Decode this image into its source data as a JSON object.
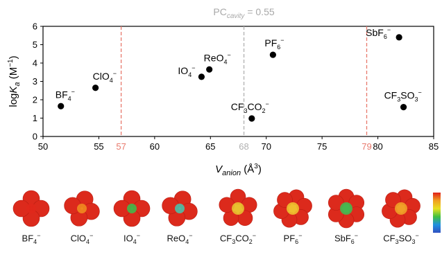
{
  "chart_data": {
    "type": "scatter",
    "title_main": "PC",
    "title_sub": "cavity",
    "title_value": " = 0.55",
    "xlabel_main": "V",
    "xlabel_sub": "anion",
    "xlabel_unit": " (Å",
    "xlabel_unit_sup": "3",
    "xlabel_close": ")",
    "ylabel_main": "log",
    "ylabel_k": "K",
    "ylabel_sub": "a",
    "ylabel_unit": " (M",
    "ylabel_unit_sup": "−1",
    "ylabel_close": ")",
    "xlim": [
      50,
      85
    ],
    "ylim": [
      0,
      6
    ],
    "xticks": [
      50,
      55,
      60,
      65,
      70,
      75,
      80,
      85
    ],
    "yticks": [
      0,
      1,
      2,
      3,
      4,
      5,
      6
    ],
    "ref_lines": [
      {
        "x": 57,
        "label": "57",
        "color": "#e8796c"
      },
      {
        "x": 68,
        "label": "68",
        "color": "#b0b0b0"
      },
      {
        "x": 79,
        "label": "79",
        "color": "#e8796c"
      }
    ],
    "points": [
      {
        "label": "BF",
        "sub": "4",
        "sup": "−",
        "x": 51.6,
        "y": 1.65,
        "anchor": "above",
        "dx": -8,
        "dy": -12
      },
      {
        "label": "ClO",
        "sub": "4",
        "sup": "−",
        "x": 54.7,
        "y": 2.65,
        "anchor": "above",
        "dx": -4,
        "dy": -12
      },
      {
        "label": "IO",
        "sub": "4",
        "sup": "−",
        "x": 64.2,
        "y": 3.25,
        "anchor": "left",
        "dx": -34,
        "dy": -4
      },
      {
        "label": "ReO",
        "sub": "4",
        "sup": "−",
        "x": 64.9,
        "y": 3.65,
        "anchor": "above",
        "dx": -8,
        "dy": -12
      },
      {
        "label": "CF",
        "sub": "3",
        "mid": "CO",
        "sub2": "2",
        "sup": "−",
        "x": 68.7,
        "y": 0.98,
        "anchor": "above",
        "dx": -30,
        "dy": -12
      },
      {
        "label": "PF",
        "sub": "6",
        "sup": "−",
        "x": 70.6,
        "y": 4.45,
        "anchor": "above",
        "dx": -12,
        "dy": -12
      },
      {
        "label": "SbF",
        "sub": "6",
        "sup": "−",
        "x": 81.9,
        "y": 5.4,
        "anchor": "left",
        "dx": -48,
        "dy": -2
      },
      {
        "label": "CF",
        "sub": "3",
        "mid": "SO",
        "sub2": "3",
        "sup": "−",
        "x": 82.3,
        "y": 1.6,
        "anchor": "above",
        "dx": -28,
        "dy": -12
      }
    ]
  },
  "molecules": [
    {
      "name": "BF",
      "sub": "4",
      "sup": "−"
    },
    {
      "name": "ClO",
      "sub": "4",
      "sup": "−"
    },
    {
      "name": "IO",
      "sub": "4",
      "sup": "−"
    },
    {
      "name": "ReO",
      "sub": "4",
      "sup": "−"
    },
    {
      "name": "CF",
      "sub": "3",
      "mid": "CO",
      "sub2": "2",
      "sup": "−"
    },
    {
      "name": "PF",
      "sub": "6",
      "sup": "−"
    },
    {
      "name": "SbF",
      "sub": "6",
      "sup": "−"
    },
    {
      "name": "CF",
      "sub": "3",
      "mid": "SO",
      "sub2": "3",
      "sup": "−"
    }
  ]
}
